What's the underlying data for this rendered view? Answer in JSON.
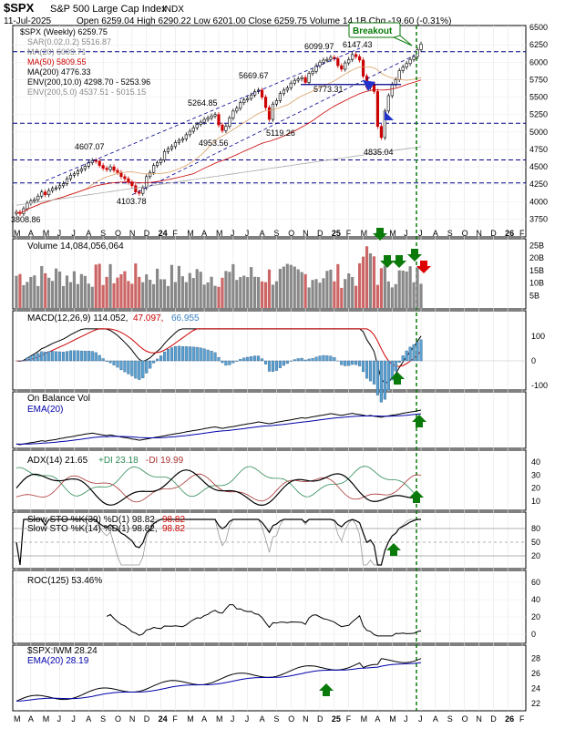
{
  "header": {
    "symbol": "$SPX",
    "name": "S&P 500 Large Cap Index",
    "exchange": "INDX",
    "date": "11-Jul-2025",
    "ohlc_line": "Open 6259.04  High 6290.22  Low 6201.00  Close 6259.75  Volume 14.1B  Chg -19.60 (-0.31%)"
  },
  "chart_data": {
    "type": "line",
    "time_axis": {
      "labels": [
        "M",
        "A",
        "M",
        "J",
        "J",
        "A",
        "S",
        "O",
        "N",
        "D",
        "24",
        "F",
        "M",
        "A",
        "M",
        "J",
        "J",
        "A",
        "S",
        "O",
        "N",
        "D",
        "25",
        "F",
        "M",
        "A",
        "M",
        "J",
        "J",
        "A",
        "S",
        "O",
        "N",
        "D",
        "26",
        "F"
      ],
      "bold": [
        "24",
        "25",
        "26"
      ]
    },
    "price_panel": {
      "legend": [
        "$SPX (Weekly) 6259.75",
        "SAR(0.02,0.2) 5516.87",
        "MA(20) 6009.71",
        "MA(50) 5809.55",
        "MA(200) 4776.33",
        "ENV(200,10.0) 4298.70 - 5253.96",
        "ENV(200,5.0) 4537.51 - 5015.15"
      ],
      "ylim": [
        3600,
        6500
      ],
      "yticks": [
        3750,
        4000,
        4250,
        4500,
        4750,
        5000,
        5250,
        5500,
        5750,
        6000,
        6250,
        6500
      ],
      "horizontal_levels": [
        6150,
        5125,
        4600,
        4270
      ],
      "annotations": [
        "3808.86",
        "4103.78",
        "4607.07",
        "4953.56",
        "5119.26",
        "5264.85",
        "5669.67",
        "5773.31",
        "6099.97",
        "6147.43",
        "4835.04"
      ],
      "callout": "Breakout",
      "close_path": [
        3850,
        3830,
        3900,
        3980,
        4010,
        4030,
        4080,
        4140,
        4100,
        4160,
        4190,
        4200,
        4230,
        4260,
        4330,
        4380,
        4400,
        4440,
        4470,
        4510,
        4560,
        4590,
        4580,
        4520,
        4480,
        4460,
        4500,
        4450,
        4420,
        4360,
        4330,
        4280,
        4230,
        4140,
        4120,
        4200,
        4360,
        4420,
        4520,
        4560,
        4600,
        4720,
        4760,
        4790,
        4850,
        4880,
        4900,
        4960,
        5010,
        5060,
        5110,
        5140,
        5180,
        5200,
        5230,
        5250,
        5100,
        5020,
        5080,
        5200,
        5300,
        5340,
        5420,
        5460,
        5480,
        5530,
        5580,
        5600,
        5500,
        5350,
        5180,
        5400,
        5450,
        5550,
        5600,
        5630,
        5700,
        5740,
        5760,
        5780,
        5710,
        5840,
        5870,
        5950,
        6000,
        6030,
        6040,
        6070,
        6050,
        5950,
        5900,
        5990,
        6040,
        6110,
        6080,
        6030,
        5800,
        5640,
        5690,
        5580,
        5080,
        4920,
        5300,
        5520,
        5680,
        5750,
        5880,
        5930,
        5980,
        6040,
        6080,
        6180,
        6260
      ]
    },
    "volume_panel": {
      "label": "Volume 14,084,056,064",
      "yticks": [
        "5B",
        "10B",
        "15B",
        "20B",
        "25B"
      ],
      "ylim": [
        0,
        27
      ]
    },
    "macd_panel": {
      "label_main": "MACD(12,26,9) 114.052,",
      "label_signal": "47.097,",
      "label_hist": "66.955",
      "yticks": [
        100,
        0,
        -100
      ]
    },
    "obv_panel": {
      "label": "On Balance Vol",
      "ema_label": "EMA(20)"
    },
    "adx_panel": {
      "label_adx": "ADX(14) 21.65",
      "label_pdi": "+DI 23.18",
      "label_mdi": "-DI 19.99",
      "yticks": [
        40,
        30,
        20,
        10
      ]
    },
    "sto_panel": {
      "label_1": "Slow STO %K(39) %D(1) 98.82,",
      "label_1b": "98.82",
      "label_2": "Slow STO %K(14) %D(1) 98.82,",
      "label_2b": "98.82",
      "yticks": [
        80,
        50,
        20
      ]
    },
    "roc_panel": {
      "label": "ROC(125) 53.46%",
      "yticks": [
        60,
        40,
        20,
        0
      ]
    },
    "ratio_panel": {
      "label": "$SPX:IWM 28.24",
      "ema_label": "EMA(20) 28.19",
      "yticks": [
        28,
        26,
        24,
        22
      ]
    }
  },
  "colors": {
    "up_candle": "#000000",
    "down_candle": "#cc0000",
    "ma50": "#cc0000",
    "ma200": "#000000",
    "ema": "#0000aa",
    "volume_up": "#888888",
    "volume_down": "#cc6666",
    "macd_hist": "#5aa0d0",
    "pdi": "#2e8b57",
    "mdi": "#aa3333",
    "arrow_green": "#0a7a0a",
    "arrow_red": "#dd0000",
    "level_line": "#00008b"
  }
}
